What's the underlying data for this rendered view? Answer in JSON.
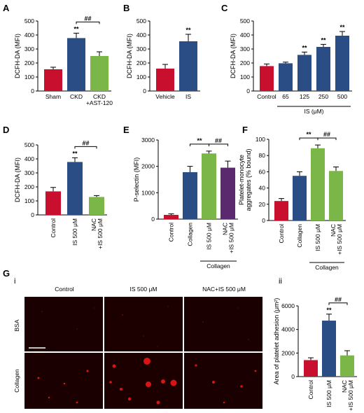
{
  "colors": {
    "red": "#c8102e",
    "blue": "#2b4d86",
    "green": "#7ab648",
    "purple": "#5b2a6e"
  },
  "chart_data": [
    {
      "id": "A",
      "type": "bar",
      "ylabel": "DCFH-DA (MFI)",
      "ylim": [
        0,
        500
      ],
      "yticks": [
        "0",
        "100",
        "200",
        "300",
        "400",
        "500"
      ],
      "categories": [
        "Sham",
        "CKD",
        "CKD\n+AST-120"
      ],
      "values": [
        155,
        378,
        250
      ],
      "errors": [
        15,
        35,
        30
      ],
      "colors": [
        "red",
        "blue",
        "green"
      ],
      "sig": [
        {
          "bar": 1,
          "text": "**"
        }
      ],
      "brackets": [
        {
          "from": 1,
          "to": 2,
          "text": "##"
        }
      ]
    },
    {
      "id": "B",
      "type": "bar",
      "ylabel": "DCFH-DA (MFI)",
      "ylim": [
        0,
        500
      ],
      "yticks": [
        "0",
        "100",
        "200",
        "300",
        "400",
        "500"
      ],
      "categories": [
        "Vehicle",
        "IS"
      ],
      "values": [
        160,
        355
      ],
      "errors": [
        30,
        50
      ],
      "colors": [
        "red",
        "blue"
      ],
      "sig": [
        {
          "bar": 1,
          "text": "**"
        }
      ]
    },
    {
      "id": "C",
      "type": "bar",
      "ylabel": "DCFH-DA (MFI)",
      "ylim": [
        0,
        500
      ],
      "yticks": [
        "0",
        "100",
        "200",
        "300",
        "400",
        "500"
      ],
      "categories": [
        "Control",
        "65",
        "125",
        "250",
        "500"
      ],
      "values": [
        178,
        198,
        258,
        315,
        395
      ],
      "errors": [
        15,
        8,
        20,
        18,
        30
      ],
      "colors": [
        "red",
        "blue",
        "blue",
        "blue",
        "blue"
      ],
      "sig": [
        {
          "bar": 2,
          "text": "**"
        },
        {
          "bar": 3,
          "text": "**"
        },
        {
          "bar": 4,
          "text": "**"
        }
      ],
      "group": {
        "from": 1,
        "to": 4,
        "text": "IS (μM)"
      }
    },
    {
      "id": "D",
      "type": "bar",
      "ylabel": "DCFH-DA (MFI)",
      "ylim": [
        0,
        500
      ],
      "yticks": [
        "0",
        "100",
        "200",
        "300",
        "400",
        "500"
      ],
      "categories": [
        "Control",
        "IS 500 μM",
        "NAC\n+IS 500 μM"
      ],
      "values": [
        168,
        378,
        128
      ],
      "errors": [
        28,
        30,
        10
      ],
      "colors": [
        "red",
        "blue",
        "green"
      ],
      "rotate": true,
      "sig": [
        {
          "bar": 1,
          "text": "**"
        }
      ],
      "brackets": [
        {
          "from": 1,
          "to": 2,
          "text": "##"
        }
      ]
    },
    {
      "id": "E",
      "type": "bar",
      "ylabel": "P-selectin (MFI)",
      "ylim": [
        0,
        3000
      ],
      "yticks": [
        "0",
        "1000",
        "2000",
        "3000"
      ],
      "categories": [
        "Control",
        "Collagen",
        "IS 500 μM",
        "NAC\n+IS 500 μM"
      ],
      "values": [
        160,
        1780,
        2490,
        1950
      ],
      "errors": [
        40,
        220,
        90,
        250
      ],
      "colors": [
        "red",
        "blue",
        "green",
        "purple"
      ],
      "rotate": true,
      "brackets": [
        {
          "from": 1,
          "to": 2,
          "text": "**"
        },
        {
          "from": 2,
          "to": 3,
          "text": "##"
        }
      ],
      "group": {
        "from": 2,
        "to": 3,
        "text": "Collagen"
      }
    },
    {
      "id": "F",
      "type": "bar",
      "ylabel": "Platelet-monocyte\naggregates (% bound)",
      "ylim": [
        0,
        100
      ],
      "yticks": [
        "0",
        "20",
        "40",
        "60",
        "80",
        "100"
      ],
      "categories": [
        "Control",
        "Collagen",
        "IS 500 μM",
        "NAC\n+IS 500 μM"
      ],
      "values": [
        24,
        55,
        89,
        61
      ],
      "errors": [
        3,
        5,
        4,
        5
      ],
      "colors": [
        "red",
        "blue",
        "green",
        "green"
      ],
      "rotate": true,
      "brackets": [
        {
          "from": 1,
          "to": 2,
          "text": "**"
        },
        {
          "from": 2,
          "to": 3,
          "text": "##"
        }
      ],
      "group": {
        "from": 2,
        "to": 3,
        "text": "Collagen"
      }
    },
    {
      "id": "Gii",
      "type": "bar",
      "ylabel": "Area of platelet adhesion (μm²)",
      "ylim": [
        0,
        6000
      ],
      "yticks": [
        "0",
        "2000",
        "4000",
        "6000"
      ],
      "categories": [
        "Control",
        "IS 500 μM",
        "NAC\n+IS 500 μM"
      ],
      "values": [
        1400,
        4750,
        1800
      ],
      "errors": [
        200,
        550,
        400
      ],
      "colors": [
        "red",
        "blue",
        "green"
      ],
      "rotate": true,
      "sig": [
        {
          "bar": 1,
          "text": "**"
        }
      ],
      "brackets": [
        {
          "from": 1,
          "to": 2,
          "text": "##"
        }
      ]
    }
  ],
  "panel_g": {
    "label": "G",
    "sub_i": "i",
    "sub_ii": "ii",
    "columns": [
      "Control",
      "IS 500 μM",
      "NAC+IS 500 μM"
    ],
    "rows": [
      "BSA",
      "Collagen"
    ]
  }
}
